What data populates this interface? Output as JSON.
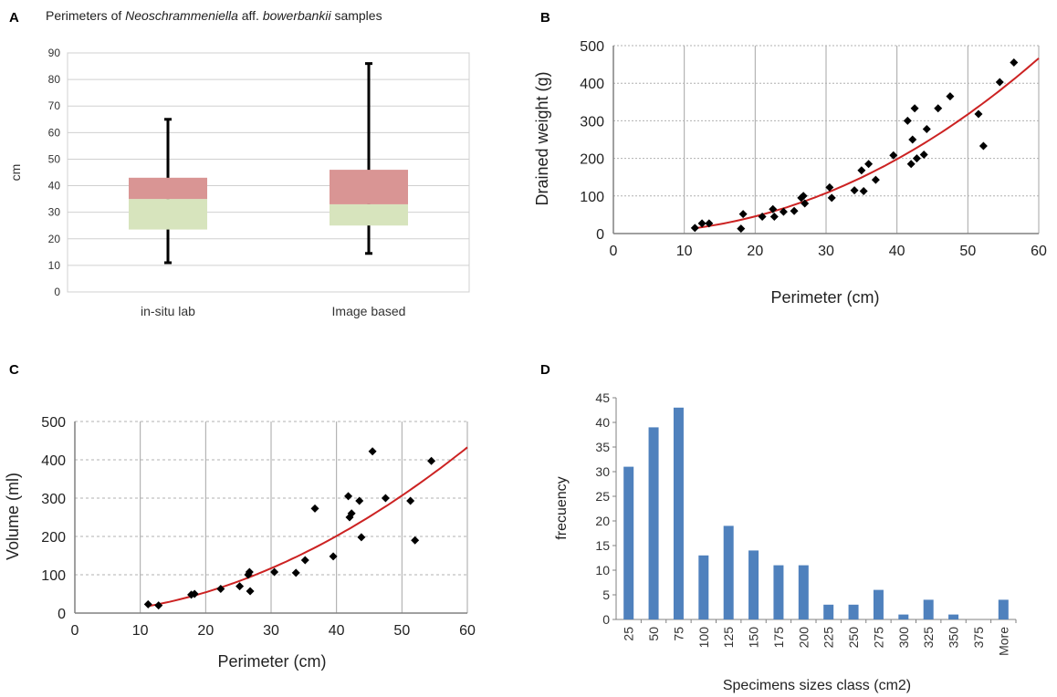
{
  "panels": {
    "A": {
      "label": "A",
      "title_pre": "Perimeters of ",
      "title_it1": "Neoschrammeniella",
      "title_mid": " aff. ",
      "title_it2": "bowerbankii",
      "title_post": "  samples"
    },
    "B": {
      "label": "B"
    },
    "C": {
      "label": "C"
    },
    "D": {
      "label": "D"
    }
  },
  "colors": {
    "box_upper": "#d99594",
    "box_lower": "#d7e4bd",
    "fit": "#cc2222",
    "bar": "#4f81bd",
    "marker": "#000000"
  },
  "chart_data": [
    {
      "id": "A",
      "type": "box",
      "ylabel": "cm",
      "ylim": [
        0,
        90
      ],
      "yticks": [
        0,
        10,
        20,
        30,
        40,
        50,
        60,
        70,
        80,
        90
      ],
      "categories": [
        "in-situ lab",
        "Image based"
      ],
      "boxes": [
        {
          "min": 11,
          "q1": 23.5,
          "median": 35,
          "q3": 43,
          "max": 65
        },
        {
          "min": 14.5,
          "q1": 25,
          "median": 33,
          "q3": 46,
          "max": 86
        }
      ],
      "grid": true
    },
    {
      "id": "B",
      "type": "scatter",
      "xlabel": "Perimeter (cm)",
      "ylabel": "Drained weight (g)",
      "xlim": [
        0,
        60
      ],
      "ylim": [
        0,
        500
      ],
      "xticks": [
        0,
        10,
        20,
        30,
        40,
        50,
        60
      ],
      "yticks": [
        0,
        100,
        200,
        300,
        400,
        500
      ],
      "trend": "power",
      "grid": true,
      "points": [
        [
          11.5,
          15
        ],
        [
          12.5,
          27
        ],
        [
          13.5,
          27
        ],
        [
          18,
          13
        ],
        [
          18.3,
          52
        ],
        [
          21,
          45
        ],
        [
          22.5,
          65
        ],
        [
          22.7,
          45
        ],
        [
          24,
          58
        ],
        [
          25.5,
          60
        ],
        [
          26.5,
          95
        ],
        [
          26.8,
          100
        ],
        [
          27,
          80
        ],
        [
          30.5,
          123
        ],
        [
          30.8,
          95
        ],
        [
          34,
          115
        ],
        [
          35,
          168
        ],
        [
          35.3,
          113
        ],
        [
          36,
          185
        ],
        [
          37,
          143
        ],
        [
          39.5,
          208
        ],
        [
          41.5,
          300
        ],
        [
          42,
          185
        ],
        [
          42.2,
          250
        ],
        [
          42.5,
          333
        ],
        [
          42.8,
          200
        ],
        [
          43.8,
          210
        ],
        [
          44.2,
          278
        ],
        [
          45.8,
          333
        ],
        [
          47.5,
          365
        ],
        [
          51.5,
          318
        ],
        [
          52.2,
          233
        ],
        [
          54.5,
          403
        ],
        [
          56.5,
          455
        ]
      ]
    },
    {
      "id": "C",
      "type": "scatter",
      "xlabel": "Perimeter (cm)",
      "ylabel": "Volume (ml)",
      "xlim": [
        0,
        60
      ],
      "ylim": [
        0,
        500
      ],
      "xticks": [
        0,
        10,
        20,
        30,
        40,
        50,
        60
      ],
      "yticks": [
        0,
        100,
        200,
        300,
        400,
        500
      ],
      "trend": "power",
      "grid": true,
      "points": [
        [
          11.2,
          23
        ],
        [
          12.8,
          20
        ],
        [
          17.8,
          48
        ],
        [
          18.3,
          50
        ],
        [
          22.3,
          63
        ],
        [
          25.2,
          70
        ],
        [
          26.5,
          100
        ],
        [
          26.7,
          107
        ],
        [
          26.8,
          57
        ],
        [
          30.5,
          107
        ],
        [
          33.8,
          105
        ],
        [
          35.2,
          138
        ],
        [
          36.7,
          273
        ],
        [
          39.5,
          148
        ],
        [
          41.8,
          305
        ],
        [
          42,
          250
        ],
        [
          42.3,
          260
        ],
        [
          43.5,
          293
        ],
        [
          43.8,
          198
        ],
        [
          45.5,
          422
        ],
        [
          47.5,
          300
        ],
        [
          51.3,
          293
        ],
        [
          52,
          190
        ],
        [
          54.5,
          397
        ]
      ]
    },
    {
      "id": "D",
      "type": "bar",
      "xlabel": "Specimens sizes class (cm2)",
      "ylabel": "frecuency",
      "ylim": [
        0,
        45
      ],
      "yticks": [
        0,
        5,
        10,
        15,
        20,
        25,
        30,
        35,
        40,
        45
      ],
      "categories": [
        "25",
        "50",
        "75",
        "100",
        "125",
        "150",
        "175",
        "200",
        "225",
        "250",
        "275",
        "300",
        "325",
        "350",
        "375",
        "More"
      ],
      "values": [
        31,
        39,
        43,
        13,
        19,
        14,
        11,
        11,
        3,
        3,
        6,
        1,
        4,
        1,
        0,
        4
      ],
      "grid": false
    }
  ]
}
